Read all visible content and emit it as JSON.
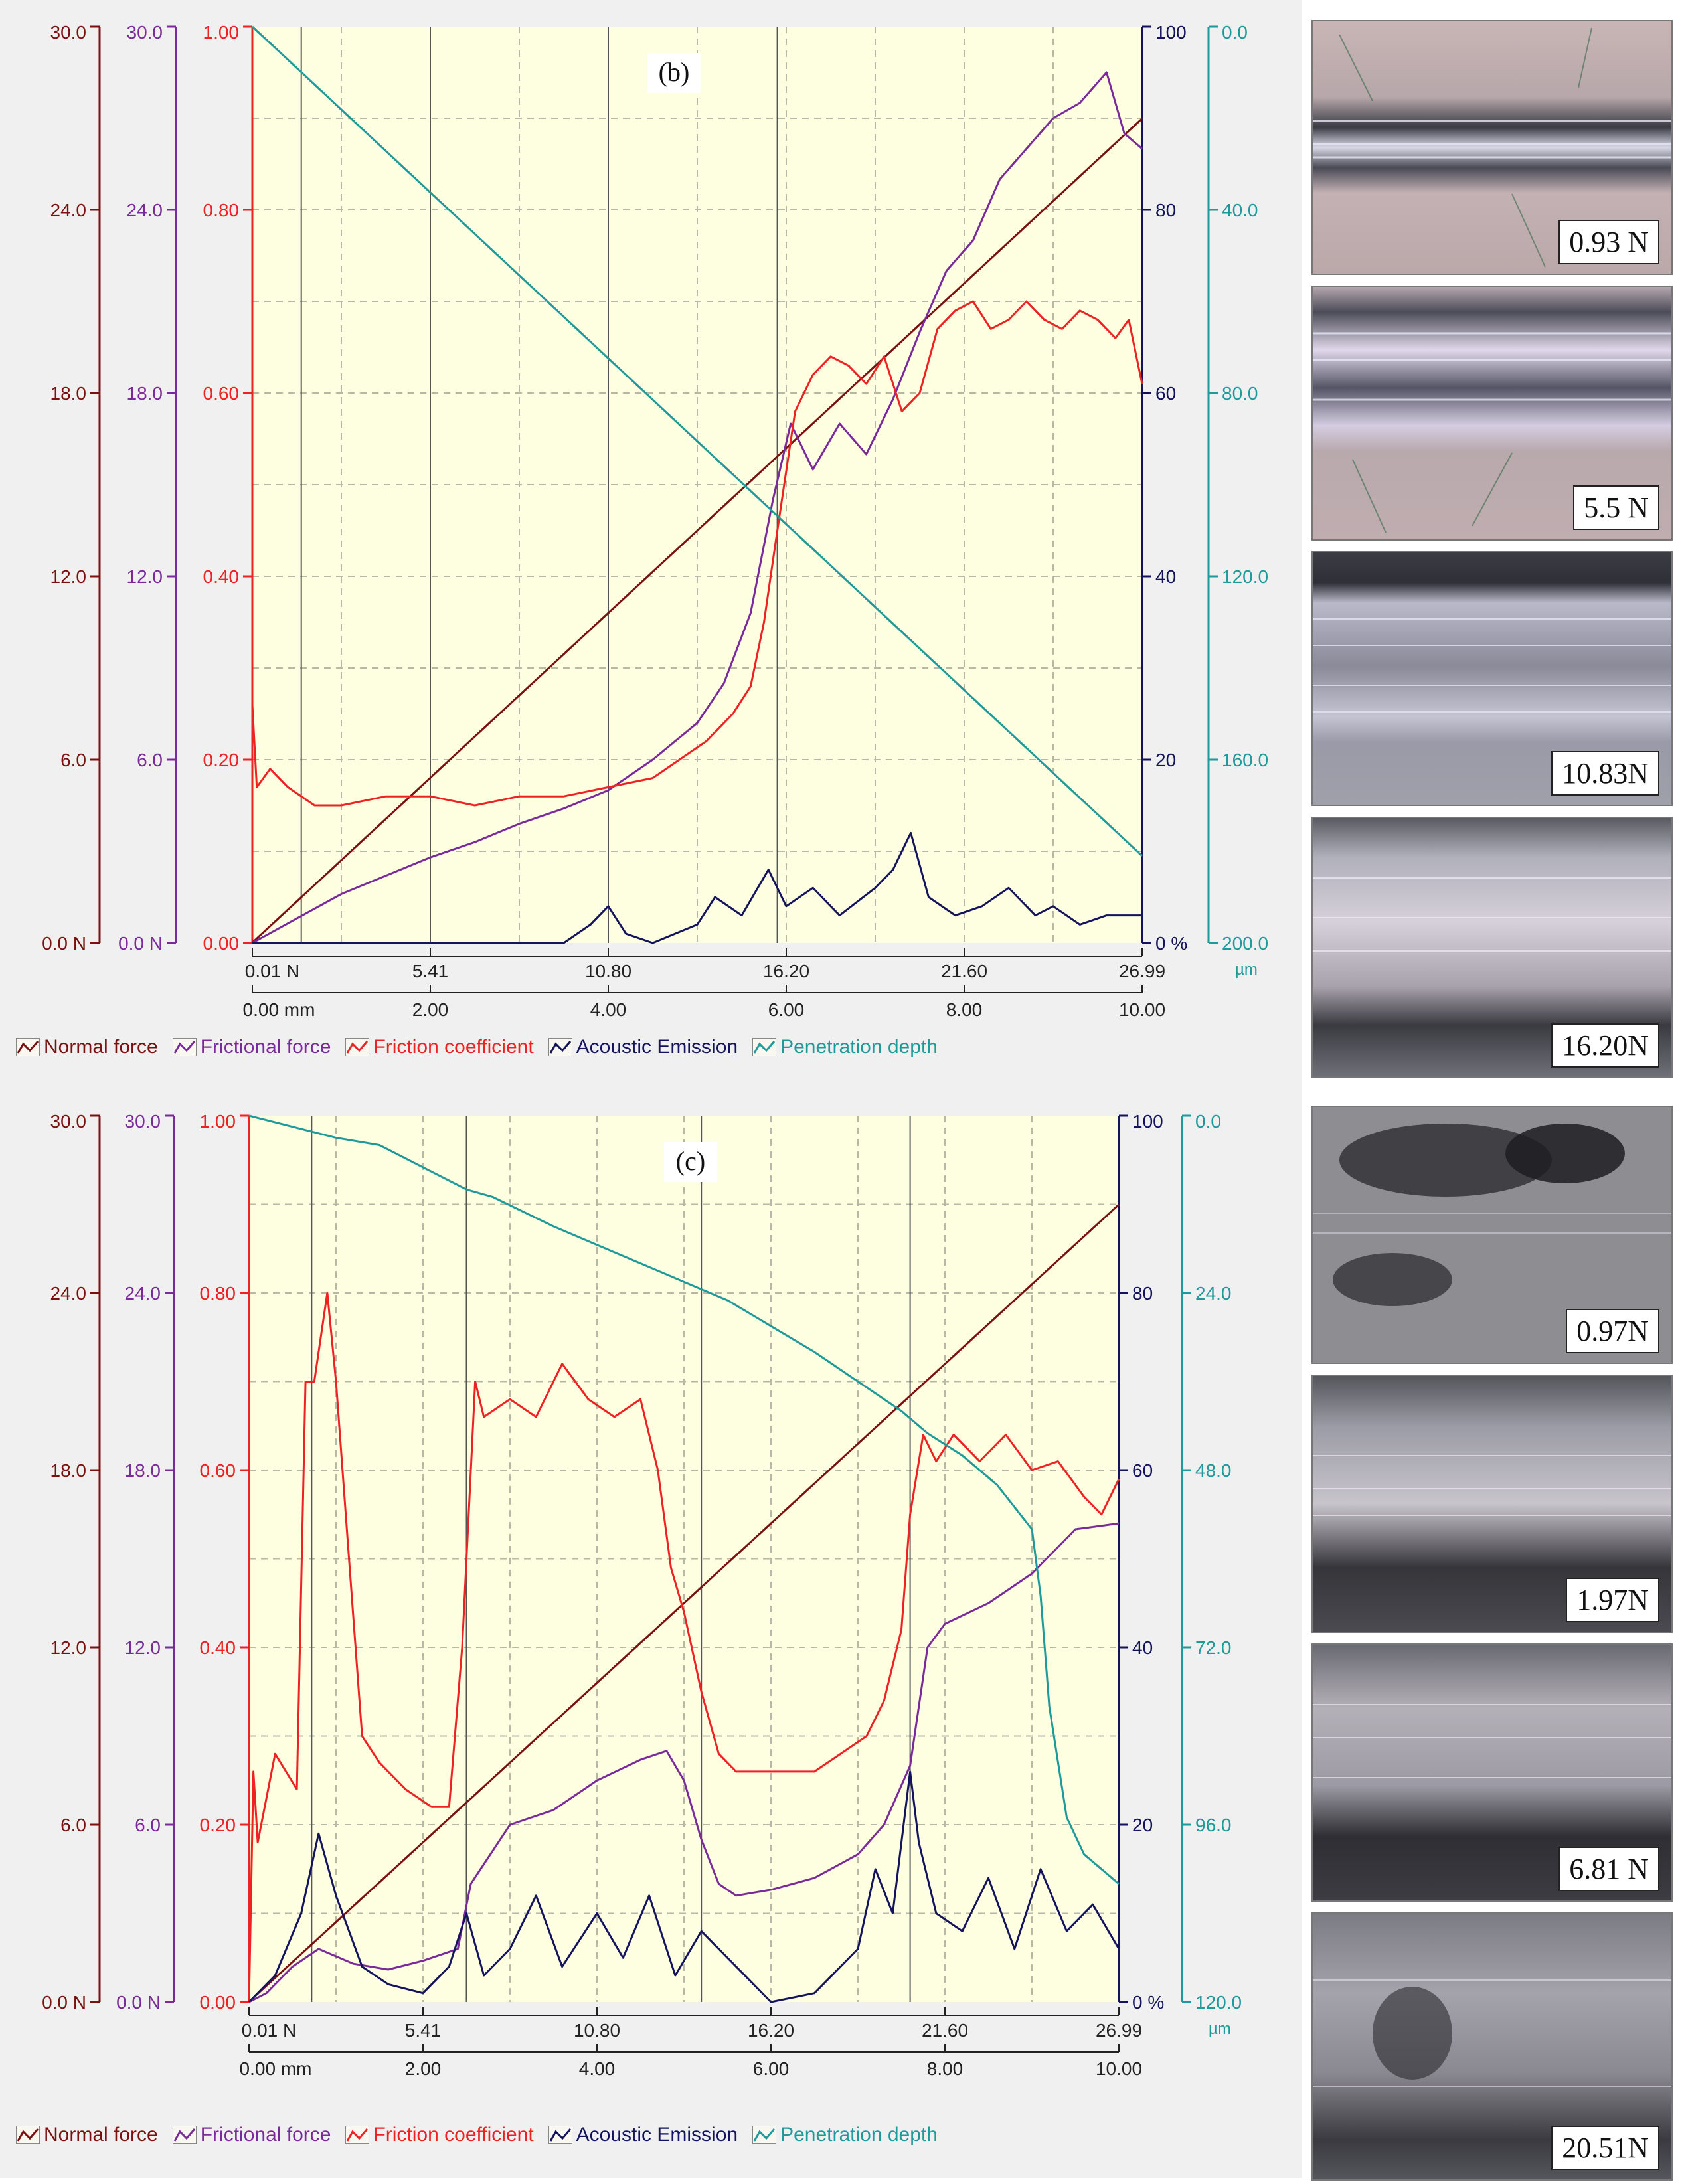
{
  "colors": {
    "normal_force": "#7a1010",
    "frictional_force": "#7a2a9a",
    "friction_coefficient": "#ee2222",
    "acoustic_emission": "#14145e",
    "penetration_depth": "#1e9a9a",
    "plot_bg": "#fefee0",
    "grid": "#b8b8a8",
    "frame_bg": "#f0f0f0"
  },
  "legend": {
    "normal_force": "Normal force",
    "frictional_force": "Frictional force",
    "friction_coefficient": "Friction coefficient",
    "acoustic_emission": "Acoustic Emission",
    "penetration_depth": "Penetration depth"
  },
  "chart_data": [
    {
      "id": "b",
      "title": "(b)",
      "type": "line",
      "axes": {
        "normal_force": {
          "ticks": [
            "0.0 N",
            "6.0",
            "12.0",
            "18.0",
            "24.0",
            "30.0"
          ],
          "range": [
            0,
            30
          ]
        },
        "frictional_force": {
          "ticks": [
            "0.0 N",
            "6.0",
            "12.0",
            "18.0",
            "24.0",
            "30.0"
          ],
          "range": [
            0,
            30
          ]
        },
        "friction_coefficient": {
          "ticks": [
            "0.00",
            "0.20",
            "0.40",
            "0.60",
            "0.80",
            "1.00"
          ],
          "range": [
            0,
            1
          ]
        },
        "acoustic_emission": {
          "ticks": [
            "0 %",
            "20",
            "40",
            "60",
            "80",
            "100"
          ],
          "range": [
            0,
            100
          ]
        },
        "penetration_depth": {
          "ticks": [
            "200.0",
            "160.0",
            "120.0",
            "80.0",
            "40.0",
            "0.0"
          ],
          "unit": "µm",
          "range": [
            200,
            0
          ]
        },
        "x_load": {
          "ticks": [
            "0.01 N",
            "5.41",
            "10.80",
            "16.20",
            "21.60",
            "26.99"
          ]
        },
        "x_distance": {
          "ticks": [
            "0.00 mm",
            "2.00",
            "4.00",
            "6.00",
            "8.00",
            "10.00"
          ],
          "range": [
            0,
            10
          ]
        }
      },
      "vertical_markers_mm": [
        0.55,
        2.0,
        4.0,
        5.9
      ],
      "series": [
        {
          "name": "Normal force",
          "x": [
            0,
            10
          ],
          "y": [
            0.01,
            26.99
          ]
        },
        {
          "name": "Frictional force",
          "x": [
            0,
            0.5,
            1,
            1.5,
            2,
            2.5,
            3,
            3.5,
            4,
            4.5,
            5,
            5.3,
            5.6,
            5.85,
            6.05,
            6.3,
            6.6,
            6.9,
            7.2,
            7.5,
            7.8,
            8.1,
            8.4,
            8.7,
            9,
            9.3,
            9.6,
            9.8,
            10
          ],
          "y": [
            0,
            0.8,
            1.6,
            2.2,
            2.8,
            3.3,
            3.9,
            4.4,
            5,
            6,
            7.2,
            8.5,
            10.8,
            14.5,
            17,
            15.5,
            17,
            16,
            17.8,
            20,
            22,
            23,
            25,
            26,
            27,
            27.5,
            28.5,
            26.5,
            26
          ]
        },
        {
          "name": "Friction coefficient",
          "x": [
            0,
            0.05,
            0.2,
            0.4,
            0.7,
            1,
            1.5,
            2,
            2.5,
            3,
            3.5,
            4,
            4.5,
            4.8,
            5.1,
            5.4,
            5.6,
            5.75,
            5.9,
            6.1,
            6.3,
            6.5,
            6.7,
            6.9,
            7.1,
            7.3,
            7.5,
            7.7,
            7.9,
            8.1,
            8.3,
            8.5,
            8.7,
            8.9,
            9.1,
            9.3,
            9.5,
            9.7,
            9.85,
            10
          ],
          "y": [
            0.26,
            0.17,
            0.19,
            0.17,
            0.15,
            0.15,
            0.16,
            0.16,
            0.15,
            0.16,
            0.16,
            0.17,
            0.18,
            0.2,
            0.22,
            0.25,
            0.28,
            0.35,
            0.45,
            0.58,
            0.62,
            0.64,
            0.63,
            0.61,
            0.64,
            0.58,
            0.6,
            0.67,
            0.69,
            0.7,
            0.67,
            0.68,
            0.7,
            0.68,
            0.67,
            0.69,
            0.68,
            0.66,
            0.68,
            0.61
          ]
        },
        {
          "name": "Acoustic Emission",
          "x": [
            0,
            3.5,
            3.8,
            4,
            4.2,
            4.5,
            5,
            5.2,
            5.5,
            5.8,
            6,
            6.3,
            6.6,
            7,
            7.2,
            7.4,
            7.6,
            7.9,
            8.2,
            8.5,
            8.8,
            9,
            9.3,
            9.6,
            10
          ],
          "y": [
            0,
            0,
            2,
            4,
            1,
            0,
            2,
            5,
            3,
            8,
            4,
            6,
            3,
            6,
            8,
            12,
            5,
            3,
            4,
            6,
            3,
            4,
            2,
            3,
            3
          ]
        },
        {
          "name": "Penetration depth",
          "x": [
            0,
            10
          ],
          "y": [
            0,
            181
          ]
        }
      ]
    },
    {
      "id": "c",
      "title": "(c)",
      "type": "line",
      "axes": {
        "normal_force": {
          "ticks": [
            "0.0 N",
            "6.0",
            "12.0",
            "18.0",
            "24.0",
            "30.0"
          ],
          "range": [
            0,
            30
          ]
        },
        "frictional_force": {
          "ticks": [
            "0.0 N",
            "6.0",
            "12.0",
            "18.0",
            "24.0",
            "30.0"
          ],
          "range": [
            0,
            30
          ]
        },
        "friction_coefficient": {
          "ticks": [
            "0.00",
            "0.20",
            "0.40",
            "0.60",
            "0.80",
            "1.00"
          ],
          "range": [
            0,
            1
          ]
        },
        "acoustic_emission": {
          "ticks": [
            "0 %",
            "20",
            "40",
            "60",
            "80",
            "100"
          ],
          "range": [
            0,
            100
          ]
        },
        "penetration_depth": {
          "ticks": [
            "120.0",
            "96.0",
            "72.0",
            "48.0",
            "24.0",
            "0.0"
          ],
          "unit": "µm",
          "range": [
            120,
            0
          ]
        },
        "x_load": {
          "ticks": [
            "0.01 N",
            "5.41",
            "10.80",
            "16.20",
            "21.60",
            "26.99"
          ]
        },
        "x_distance": {
          "ticks": [
            "0.00 mm",
            "2.00",
            "4.00",
            "6.00",
            "8.00",
            "10.00"
          ],
          "range": [
            0,
            10
          ]
        }
      },
      "vertical_markers_mm": [
        0.72,
        2.5,
        5.2,
        7.6
      ],
      "series": [
        {
          "name": "Normal force",
          "x": [
            0,
            10
          ],
          "y": [
            0.01,
            26.99
          ]
        },
        {
          "name": "Frictional force",
          "x": [
            0,
            0.2,
            0.5,
            0.8,
            1.2,
            1.6,
            2,
            2.4,
            2.55,
            3,
            3.5,
            4,
            4.5,
            4.8,
            5,
            5.2,
            5.4,
            5.6,
            6,
            6.5,
            7,
            7.3,
            7.6,
            7.8,
            8,
            8.5,
            9,
            9.5,
            10
          ],
          "y": [
            0,
            0.3,
            1.2,
            1.8,
            1.3,
            1.1,
            1.4,
            1.8,
            4,
            6,
            6.5,
            7.5,
            8.2,
            8.5,
            7.5,
            5.5,
            4,
            3.6,
            3.8,
            4.2,
            5,
            6,
            8,
            12,
            12.8,
            13.5,
            14.5,
            16,
            16.2
          ]
        },
        {
          "name": "Friction coefficient",
          "x": [
            0,
            0.05,
            0.1,
            0.3,
            0.55,
            0.65,
            0.75,
            0.9,
            1,
            1.15,
            1.3,
            1.5,
            1.8,
            2.1,
            2.3,
            2.45,
            2.6,
            2.7,
            3,
            3.3,
            3.6,
            3.9,
            4.2,
            4.5,
            4.7,
            4.85,
            5,
            5.2,
            5.4,
            5.6,
            5.9,
            6.2,
            6.5,
            6.8,
            7.1,
            7.3,
            7.5,
            7.6,
            7.75,
            7.9,
            8.1,
            8.4,
            8.7,
            9,
            9.3,
            9.6,
            9.8,
            10
          ],
          "y": [
            0,
            0.26,
            0.18,
            0.28,
            0.24,
            0.7,
            0.7,
            0.8,
            0.7,
            0.5,
            0.3,
            0.27,
            0.24,
            0.22,
            0.22,
            0.4,
            0.7,
            0.66,
            0.68,
            0.66,
            0.72,
            0.68,
            0.66,
            0.68,
            0.6,
            0.49,
            0.44,
            0.35,
            0.28,
            0.26,
            0.26,
            0.26,
            0.26,
            0.28,
            0.3,
            0.34,
            0.42,
            0.55,
            0.64,
            0.61,
            0.64,
            0.61,
            0.64,
            0.6,
            0.61,
            0.57,
            0.55,
            0.59
          ]
        },
        {
          "name": "Acoustic Emission",
          "x": [
            0,
            0.3,
            0.6,
            0.8,
            1,
            1.3,
            1.6,
            2,
            2.3,
            2.5,
            2.7,
            3,
            3.3,
            3.6,
            4,
            4.3,
            4.6,
            4.9,
            5.2,
            5.6,
            6,
            6.5,
            7,
            7.2,
            7.4,
            7.6,
            7.7,
            7.9,
            8.2,
            8.5,
            8.8,
            9.1,
            9.4,
            9.7,
            10
          ],
          "y": [
            0,
            3,
            10,
            19,
            12,
            4,
            2,
            1,
            4,
            10,
            3,
            6,
            12,
            4,
            10,
            5,
            12,
            3,
            8,
            4,
            0,
            1,
            6,
            15,
            10,
            26,
            18,
            10,
            8,
            14,
            6,
            15,
            8,
            11,
            6
          ]
        },
        {
          "name": "Penetration depth",
          "x": [
            0,
            1,
            1.5,
            2.5,
            2.8,
            3.5,
            4.5,
            5.5,
            6.5,
            7,
            7.5,
            7.8,
            8.2,
            8.6,
            9,
            9.1,
            9.2,
            9.4,
            9.6,
            10
          ],
          "y": [
            0,
            3,
            4,
            10,
            11,
            15,
            20,
            25,
            32,
            36,
            40,
            43,
            46,
            50,
            56,
            65,
            80,
            95,
            100,
            104
          ]
        }
      ]
    }
  ],
  "micrographs_b": [
    {
      "label": "0.93 N"
    },
    {
      "label": "5.5 N"
    },
    {
      "label": "10.83N"
    },
    {
      "label": "16.20N"
    }
  ],
  "micrographs_c": [
    {
      "label": "0.97N"
    },
    {
      "label": "1.97N"
    },
    {
      "label": "6.81 N"
    },
    {
      "label": "20.51N"
    }
  ]
}
